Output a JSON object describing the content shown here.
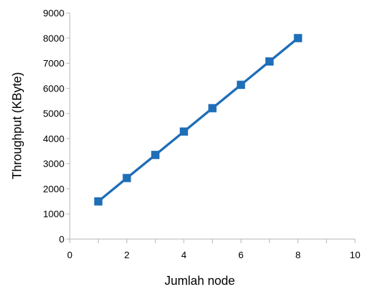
{
  "chart_data": {
    "type": "line",
    "title": "",
    "xlabel": "Jumlah node",
    "ylabel": "Throughput (KByte)",
    "xlim": [
      0,
      10
    ],
    "ylim": [
      0,
      9000
    ],
    "x_ticks": [
      0,
      2,
      4,
      6,
      8,
      10
    ],
    "y_ticks": [
      0,
      1000,
      2000,
      3000,
      4000,
      5000,
      6000,
      7000,
      8000,
      9000
    ],
    "x_tick_labels": [
      "0",
      "2",
      "4",
      "6",
      "8",
      "10"
    ],
    "y_tick_labels": [
      "0",
      "1000",
      "2000",
      "3000",
      "4000",
      "5000",
      "6000",
      "7000",
      "8000",
      "9000"
    ],
    "grid": false,
    "legend": "none",
    "series": [
      {
        "color": "#1f6eb8",
        "marker": "square",
        "x": [
          1,
          2,
          3,
          4,
          5,
          6,
          7,
          8
        ],
        "y": [
          1500,
          2430,
          3350,
          4280,
          5210,
          6140,
          7070,
          8000
        ]
      }
    ]
  }
}
